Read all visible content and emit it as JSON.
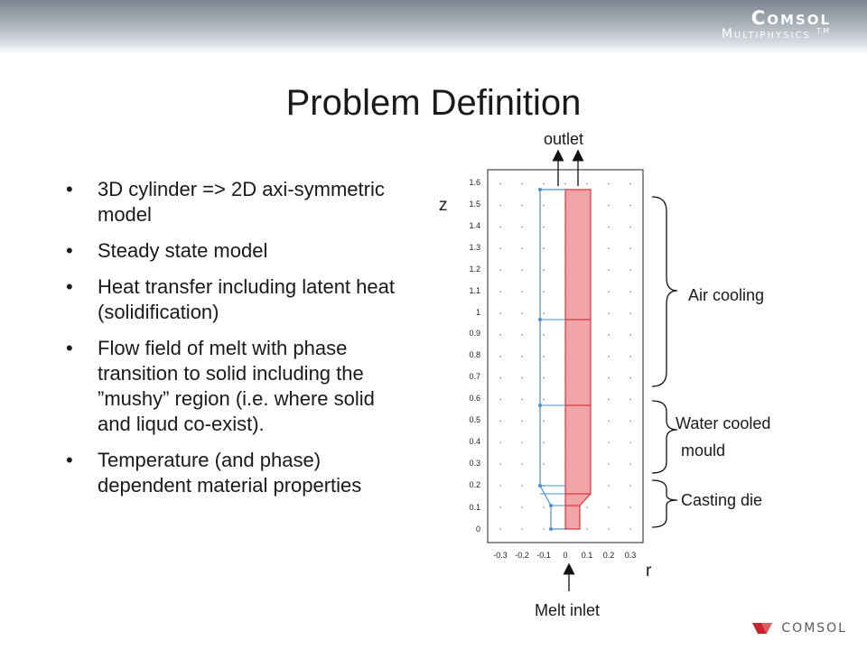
{
  "header": {
    "brand_line1": "Comsol",
    "brand_line2": "Multiphysics",
    "brand_tm": "TM"
  },
  "title": "Problem Definition",
  "bullets": [
    "3D cylinder => 2D axi-symmetric model",
    "Steady state model",
    "Heat transfer including latent heat (solidification)",
    "Flow field of melt with phase transition to solid including the ”mushy” region (i.e. where solid and liqud co-exist).",
    "Temperature (and phase) dependent material properties"
  ],
  "diagram": {
    "outlet_label": "outlet",
    "inlet_label": "Melt inlet",
    "z_axis_label": "z",
    "r_axis_label": "r",
    "z_ticks": [
      "0",
      "0.1",
      "0.2",
      "0.3",
      "0.4",
      "0.5",
      "0.6",
      "0.7",
      "0.8",
      "0.9",
      "1",
      "1.1",
      "1.2",
      "1.3",
      "1.4",
      "1.5",
      "1.6"
    ],
    "r_ticks": [
      "-0.3",
      "-0.2",
      "-0.1",
      "0",
      "0.1",
      "0.2",
      "0.3"
    ],
    "air_cooling_label": "Air cooling",
    "water_line1": "Water cooled",
    "water_line2": "mould",
    "die_label": "Casting die",
    "fill_color": "#f2a4a6",
    "boundary_red": "#d9383f",
    "boundary_blue": "#4a90d9"
  },
  "footer": {
    "logo_text": "COMSOL"
  }
}
